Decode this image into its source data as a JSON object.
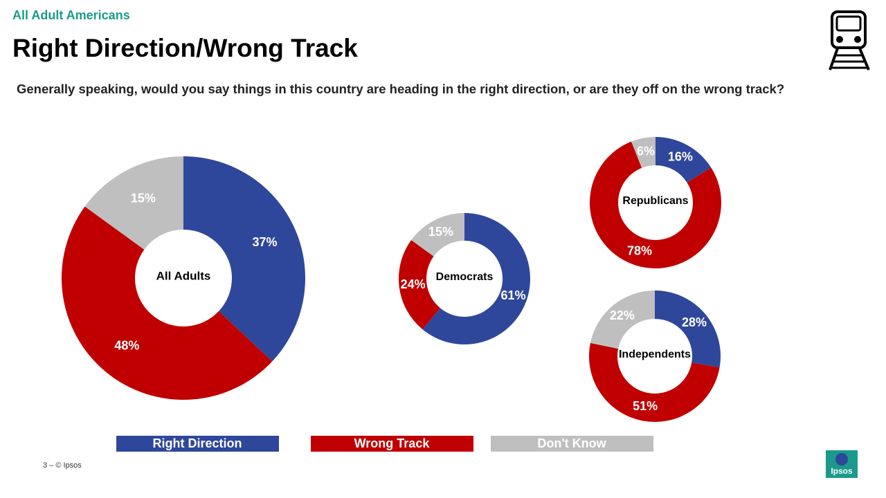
{
  "header": {
    "subtitle": "All Adult Americans",
    "title": "Right Direction/Wrong Track",
    "question": "Generally speaking, would you say things in this country are heading in the right direction, or are they off on the wrong track?"
  },
  "legend": {
    "labels": [
      "Right Direction",
      "Wrong Track",
      "Don't Know"
    ],
    "colors": [
      "#2f479b",
      "#c00000",
      "#bfbfbf"
    ]
  },
  "chart_data": [
    {
      "type": "donut",
      "title": "All Adults",
      "values": [
        37,
        48,
        15
      ],
      "value_labels": [
        "37%",
        "48%",
        "15%"
      ]
    },
    {
      "type": "donut",
      "title": "Democrats",
      "values": [
        61,
        24,
        15
      ],
      "value_labels": [
        "61%",
        "24%",
        "15%"
      ]
    },
    {
      "type": "donut",
      "title": "Republicans",
      "values": [
        16,
        78,
        6
      ],
      "value_labels": [
        "16%",
        "78%",
        "6%"
      ]
    },
    {
      "type": "donut",
      "title": "Independents",
      "values": [
        28,
        51,
        22
      ],
      "value_labels": [
        "28%",
        "51%",
        "22%"
      ]
    }
  ],
  "footer": "3 –  © Ipsos",
  "logo": "Ipsos"
}
